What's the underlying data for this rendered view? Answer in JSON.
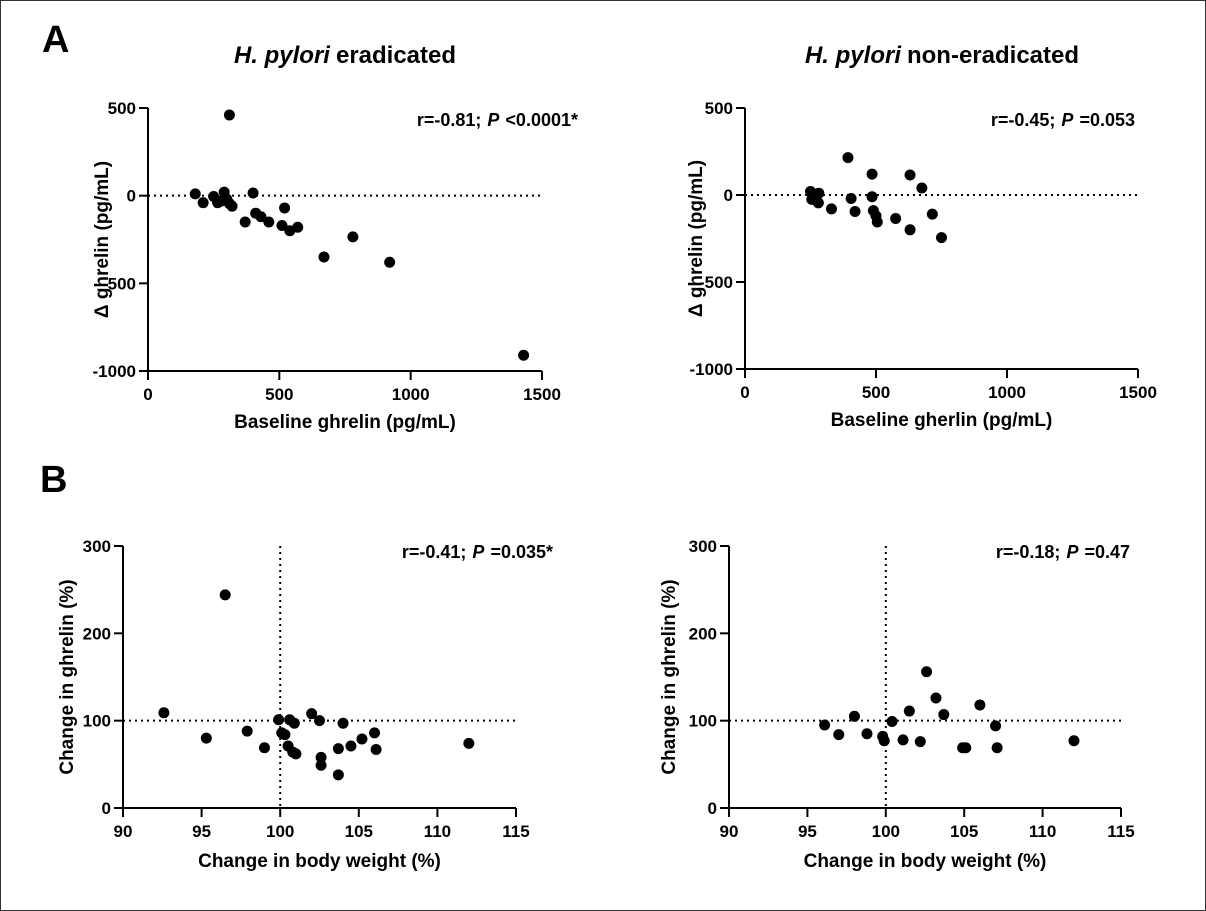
{
  "chart_data": [
    {
      "type": "scatter",
      "panel_label": "A",
      "title": [
        {
          "text": "H. pylori",
          "italic": true
        },
        {
          "text": "eradicated"
        }
      ],
      "annotation": [
        {
          "text": "r=-0.81;"
        },
        {
          "text": "P",
          "italic": true
        },
        {
          "text": "<0.0001*"
        }
      ],
      "x_label": "Baseline ghrelin (pg/mL)",
      "y_label": "Δ ghrelin (pg/mL)",
      "xlim": [
        0,
        1500
      ],
      "ylim": [
        -1000,
        500
      ],
      "xticks": [
        0,
        500,
        1000,
        1500
      ],
      "yticks": [
        -1000,
        -500,
        0,
        500
      ],
      "hlines": [
        0
      ],
      "color": "#000000",
      "x": [
        180,
        210,
        250,
        265,
        280,
        290,
        300,
        310,
        320,
        310,
        370,
        400,
        410,
        430,
        460,
        510,
        520,
        540,
        570,
        670,
        780,
        920,
        1430
      ],
      "values": [
        10,
        -40,
        -5,
        -40,
        -30,
        20,
        -20,
        -45,
        -60,
        460,
        -150,
        15,
        -100,
        -120,
        -150,
        -170,
        -70,
        -200,
        -180,
        -350,
        -235,
        -380,
        -910
      ]
    },
    {
      "type": "scatter",
      "title": [
        {
          "text": "H. pylori",
          "italic": true
        },
        {
          "text": "non-eradicated"
        }
      ],
      "annotation": [
        {
          "text": "r=-0.45;"
        },
        {
          "text": "P",
          "italic": true
        },
        {
          "text": "=0.053"
        }
      ],
      "x_label": "Baseline gherlin (pg/mL)",
      "y_label": "Δ ghrelin (pg/mL)",
      "xlim": [
        0,
        1500
      ],
      "ylim": [
        -1000,
        500
      ],
      "xticks": [
        0,
        500,
        1000,
        1500
      ],
      "yticks": [
        -1000,
        -500,
        0,
        500
      ],
      "hlines": [
        0
      ],
      "color": "#000000",
      "x": [
        250,
        255,
        282,
        280,
        330,
        393,
        405,
        420,
        485,
        485,
        490,
        500,
        505,
        575,
        630,
        630,
        675,
        715,
        750
      ],
      "values": [
        20,
        -25,
        10,
        -45,
        -80,
        215,
        -20,
        -95,
        120,
        -10,
        -90,
        -120,
        -155,
        -135,
        115,
        -200,
        40,
        -110,
        -245
      ]
    },
    {
      "type": "scatter",
      "panel_label": "B",
      "annotation": [
        {
          "text": "r=-0.41;"
        },
        {
          "text": "P",
          "italic": true
        },
        {
          "text": "=0.035*"
        }
      ],
      "x_label": "Change in body weight (%)",
      "y_label": "Change in ghrelin (%)",
      "xlim": [
        90,
        115
      ],
      "ylim": [
        0,
        300
      ],
      "xticks": [
        90,
        95,
        100,
        105,
        110,
        115
      ],
      "yticks": [
        0,
        100,
        200,
        300
      ],
      "hlines": [
        100
      ],
      "vlines": [
        100
      ],
      "color": "#000000",
      "x": [
        92.6,
        95.3,
        96.5,
        97.9,
        99.0,
        99.9,
        100.1,
        100.3,
        100.5,
        100.6,
        100.8,
        100.9,
        101.0,
        102.0,
        102.5,
        102.6,
        102.6,
        103.7,
        103.7,
        104.0,
        104.5,
        105.2,
        106.0,
        106.1,
        112.0
      ],
      "values": [
        109,
        80,
        244,
        88,
        69,
        101,
        86,
        84,
        71,
        101,
        64,
        97,
        62,
        108,
        100,
        58,
        49,
        68,
        38,
        97,
        71,
        79,
        86,
        67,
        74
      ]
    },
    {
      "type": "scatter",
      "annotation": [
        {
          "text": "r=-0.18;"
        },
        {
          "text": "P",
          "italic": true
        },
        {
          "text": "=0.47"
        }
      ],
      "x_label": "Change in body weight (%)",
      "y_label": "Change in ghrelin (%)",
      "xlim": [
        90,
        115
      ],
      "ylim": [
        0,
        300
      ],
      "xticks": [
        90,
        95,
        100,
        105,
        110,
        115
      ],
      "yticks": [
        0,
        100,
        200,
        300
      ],
      "hlines": [
        100
      ],
      "vlines": [
        100
      ],
      "color": "#000000",
      "x": [
        96.1,
        97.0,
        98.0,
        98.8,
        99.8,
        99.9,
        100.4,
        101.1,
        101.5,
        102.2,
        102.6,
        103.2,
        103.7,
        104.9,
        105.1,
        106.0,
        107.0,
        107.1,
        112.0
      ],
      "values": [
        95,
        84,
        105,
        85,
        82,
        77,
        99,
        78,
        111,
        76,
        156,
        126,
        107,
        69,
        69,
        118,
        94,
        69,
        77
      ]
    }
  ]
}
